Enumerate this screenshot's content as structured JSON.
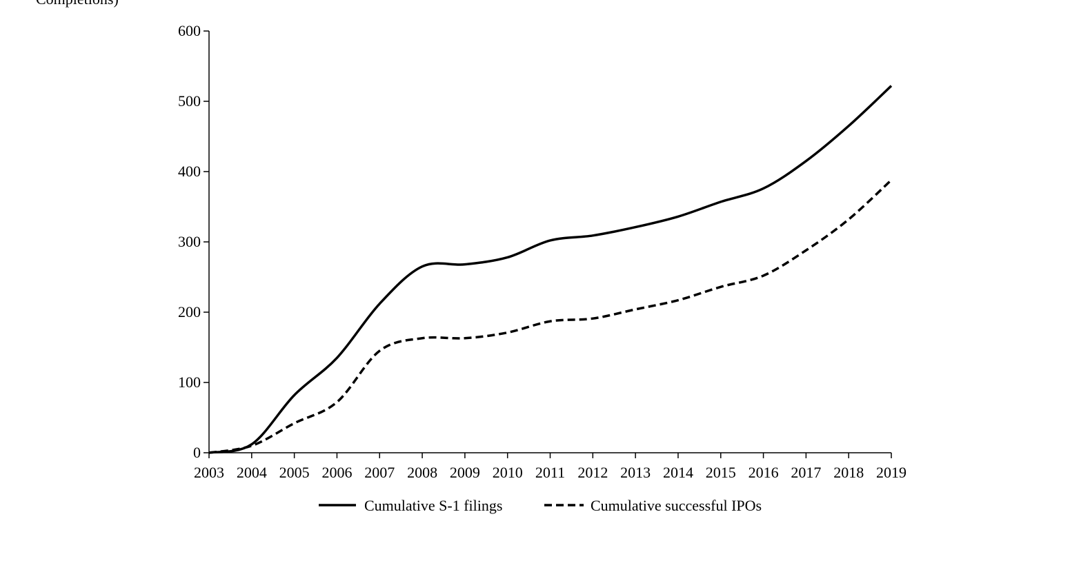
{
  "page": {
    "cropped_caption_fragment": "Completions)"
  },
  "chart_data": {
    "type": "line",
    "title": "",
    "xlabel": "",
    "ylabel": "",
    "x": [
      2003,
      2004,
      2005,
      2006,
      2007,
      2008,
      2009,
      2010,
      2011,
      2012,
      2013,
      2014,
      2015,
      2016,
      2017,
      2018,
      2019
    ],
    "xlim": [
      2003,
      2019
    ],
    "ylim": [
      0,
      600
    ],
    "yticks": [
      0,
      100,
      200,
      300,
      400,
      500,
      600
    ],
    "xtick_labels": [
      "2003",
      "2004",
      "2005",
      "2006",
      "2007",
      "2008",
      "2009",
      "2010",
      "2011",
      "2012",
      "2013",
      "2014",
      "2015",
      "2016",
      "2017",
      "2018",
      "2019"
    ],
    "ytick_labels": [
      "0",
      "100",
      "200",
      "300",
      "400",
      "500",
      "600"
    ],
    "grid": false,
    "legend_position": "bottom",
    "series": [
      {
        "name": "Cumulative S-1 filings",
        "style": "solid",
        "color": "#000000",
        "values": [
          0,
          12,
          82,
          135,
          212,
          265,
          268,
          278,
          302,
          309,
          321,
          336,
          357,
          376,
          415,
          465,
          522
        ]
      },
      {
        "name": "Cumulative successful IPOs",
        "style": "dashed",
        "color": "#000000",
        "values": [
          0,
          10,
          42,
          72,
          145,
          163,
          163,
          171,
          187,
          191,
          204,
          217,
          236,
          252,
          288,
          332,
          388
        ]
      }
    ]
  }
}
